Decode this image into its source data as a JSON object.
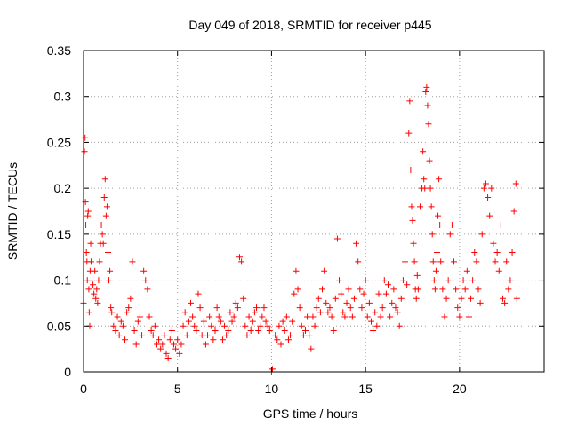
{
  "chart_data": {
    "type": "scatter",
    "title": "Day 049 of 2018, SRMTID for receiver p445",
    "xlabel": "GPS time / hours",
    "ylabel": "SRMTID / TECUs",
    "xlim": [
      0,
      24.5
    ],
    "ylim": [
      0,
      0.35
    ],
    "grid": true,
    "marker": "plus",
    "marker_color": "#ff0000",
    "x_ticks": [
      {
        "value": 0,
        "label": "0"
      },
      {
        "value": 5,
        "label": "5"
      },
      {
        "value": 10,
        "label": "10"
      },
      {
        "value": 15,
        "label": "15"
      },
      {
        "value": 20,
        "label": "20"
      }
    ],
    "y_ticks": [
      {
        "value": 0,
        "label": "0"
      },
      {
        "value": 0.05,
        "label": "0.05"
      },
      {
        "value": 0.1,
        "label": "0.1"
      },
      {
        "value": 0.15,
        "label": "0.15"
      },
      {
        "value": 0.2,
        "label": "0.2"
      },
      {
        "value": 0.25,
        "label": "0.25"
      },
      {
        "value": 0.3,
        "label": "0.3"
      },
      {
        "value": 0.35,
        "label": "0.35"
      }
    ],
    "series": [
      {
        "name": "SRMTID",
        "points": [
          [
            0.0,
            0.075
          ],
          [
            0.05,
            0.24
          ],
          [
            0.08,
            0.255
          ],
          [
            0.1,
            0.185
          ],
          [
            0.12,
            0.16
          ],
          [
            0.15,
            0.13
          ],
          [
            0.18,
            0.12
          ],
          [
            0.2,
            0.1
          ],
          [
            0.22,
            0.17
          ],
          [
            0.25,
            0.175
          ],
          [
            0.28,
            0.09
          ],
          [
            0.3,
            0.065
          ],
          [
            0.33,
            0.05
          ],
          [
            0.35,
            0.11
          ],
          [
            0.38,
            0.14
          ],
          [
            0.4,
            0.12
          ],
          [
            0.45,
            0.1
          ],
          [
            0.5,
            0.095
          ],
          [
            0.55,
            0.085
          ],
          [
            0.6,
            0.11
          ],
          [
            0.65,
            0.08
          ],
          [
            0.7,
            0.09
          ],
          [
            0.75,
            0.075
          ],
          [
            0.8,
            0.1
          ],
          [
            0.85,
            0.12
          ],
          [
            0.9,
            0.14
          ],
          [
            0.95,
            0.16
          ],
          [
            1.0,
            0.15
          ],
          [
            1.05,
            0.14
          ],
          [
            1.1,
            0.19
          ],
          [
            1.15,
            0.21
          ],
          [
            1.2,
            0.17
          ],
          [
            1.25,
            0.18
          ],
          [
            1.3,
            0.13
          ],
          [
            1.35,
            0.1
          ],
          [
            1.4,
            0.11
          ],
          [
            1.45,
            0.07
          ],
          [
            1.5,
            0.065
          ],
          [
            1.6,
            0.05
          ],
          [
            1.7,
            0.045
          ],
          [
            1.8,
            0.06
          ],
          [
            1.9,
            0.04
          ],
          [
            2.0,
            0.055
          ],
          [
            2.1,
            0.05
          ],
          [
            2.2,
            0.035
          ],
          [
            2.3,
            0.065
          ],
          [
            2.4,
            0.07
          ],
          [
            2.5,
            0.08
          ],
          [
            2.6,
            0.12
          ],
          [
            2.7,
            0.045
          ],
          [
            2.8,
            0.03
          ],
          [
            2.9,
            0.055
          ],
          [
            3.0,
            0.06
          ],
          [
            3.1,
            0.04
          ],
          [
            3.2,
            0.11
          ],
          [
            3.3,
            0.1
          ],
          [
            3.4,
            0.09
          ],
          [
            3.5,
            0.06
          ],
          [
            3.6,
            0.045
          ],
          [
            3.7,
            0.04
          ],
          [
            3.8,
            0.05
          ],
          [
            3.9,
            0.03
          ],
          [
            4.0,
            0.035
          ],
          [
            4.1,
            0.025
          ],
          [
            4.2,
            0.03
          ],
          [
            4.3,
            0.04
          ],
          [
            4.4,
            0.02
          ],
          [
            4.5,
            0.015
          ],
          [
            4.6,
            0.035
          ],
          [
            4.7,
            0.045
          ],
          [
            4.8,
            0.03
          ],
          [
            4.9,
            0.025
          ],
          [
            5.0,
            0.035
          ],
          [
            5.1,
            0.02
          ],
          [
            5.2,
            0.03
          ],
          [
            5.3,
            0.05
          ],
          [
            5.4,
            0.065
          ],
          [
            5.5,
            0.04
          ],
          [
            5.6,
            0.055
          ],
          [
            5.7,
            0.075
          ],
          [
            5.8,
            0.06
          ],
          [
            5.9,
            0.05
          ],
          [
            6.0,
            0.045
          ],
          [
            6.1,
            0.085
          ],
          [
            6.2,
            0.07
          ],
          [
            6.3,
            0.04
          ],
          [
            6.4,
            0.055
          ],
          [
            6.5,
            0.03
          ],
          [
            6.6,
            0.04
          ],
          [
            6.7,
            0.06
          ],
          [
            6.8,
            0.05
          ],
          [
            6.9,
            0.035
          ],
          [
            7.0,
            0.045
          ],
          [
            7.1,
            0.07
          ],
          [
            7.2,
            0.06
          ],
          [
            7.3,
            0.055
          ],
          [
            7.4,
            0.035
          ],
          [
            7.5,
            0.05
          ],
          [
            7.6,
            0.04
          ],
          [
            7.7,
            0.045
          ],
          [
            7.8,
            0.065
          ],
          [
            7.9,
            0.055
          ],
          [
            8.0,
            0.06
          ],
          [
            8.1,
            0.075
          ],
          [
            8.2,
            0.07
          ],
          [
            8.3,
            0.125
          ],
          [
            8.4,
            0.12
          ],
          [
            8.5,
            0.08
          ],
          [
            8.6,
            0.05
          ],
          [
            8.7,
            0.04
          ],
          [
            8.8,
            0.06
          ],
          [
            8.9,
            0.045
          ],
          [
            9.0,
            0.055
          ],
          [
            9.1,
            0.065
          ],
          [
            9.2,
            0.07
          ],
          [
            9.3,
            0.045
          ],
          [
            9.4,
            0.05
          ],
          [
            9.5,
            0.06
          ],
          [
            9.6,
            0.07
          ],
          [
            9.7,
            0.055
          ],
          [
            9.8,
            0.05
          ],
          [
            9.9,
            0.045
          ],
          [
            10.0,
            0.0
          ],
          [
            10.05,
            0.003
          ],
          [
            10.2,
            0.04
          ],
          [
            10.3,
            0.035
          ],
          [
            10.4,
            0.05
          ],
          [
            10.5,
            0.03
          ],
          [
            10.6,
            0.055
          ],
          [
            10.7,
            0.045
          ],
          [
            10.8,
            0.06
          ],
          [
            10.9,
            0.035
          ],
          [
            11.0,
            0.04
          ],
          [
            11.1,
            0.055
          ],
          [
            11.2,
            0.085
          ],
          [
            11.3,
            0.11
          ],
          [
            11.4,
            0.09
          ],
          [
            11.5,
            0.07
          ],
          [
            11.6,
            0.05
          ],
          [
            11.7,
            0.04
          ],
          [
            11.8,
            0.045
          ],
          [
            11.9,
            0.06
          ],
          [
            12.0,
            0.04
          ],
          [
            12.1,
            0.025
          ],
          [
            12.2,
            0.06
          ],
          [
            12.3,
            0.05
          ],
          [
            12.4,
            0.07
          ],
          [
            12.5,
            0.08
          ],
          [
            12.6,
            0.065
          ],
          [
            12.7,
            0.09
          ],
          [
            12.8,
            0.11
          ],
          [
            12.9,
            0.075
          ],
          [
            13.0,
            0.065
          ],
          [
            13.1,
            0.07
          ],
          [
            13.2,
            0.06
          ],
          [
            13.3,
            0.045
          ],
          [
            13.4,
            0.08
          ],
          [
            13.5,
            0.145
          ],
          [
            13.6,
            0.1
          ],
          [
            13.7,
            0.085
          ],
          [
            13.8,
            0.065
          ],
          [
            13.9,
            0.06
          ],
          [
            14.0,
            0.075
          ],
          [
            14.1,
            0.09
          ],
          [
            14.2,
            0.07
          ],
          [
            14.3,
            0.06
          ],
          [
            14.4,
            0.08
          ],
          [
            14.5,
            0.14
          ],
          [
            14.6,
            0.12
          ],
          [
            14.7,
            0.09
          ],
          [
            14.8,
            0.07
          ],
          [
            14.9,
            0.085
          ],
          [
            15.0,
            0.1
          ],
          [
            15.1,
            0.06
          ],
          [
            15.2,
            0.075
          ],
          [
            15.3,
            0.055
          ],
          [
            15.4,
            0.045
          ],
          [
            15.5,
            0.065
          ],
          [
            15.6,
            0.05
          ],
          [
            15.7,
            0.085
          ],
          [
            15.8,
            0.06
          ],
          [
            15.9,
            0.07
          ],
          [
            16.0,
            0.1
          ],
          [
            16.1,
            0.085
          ],
          [
            16.2,
            0.095
          ],
          [
            16.3,
            0.06
          ],
          [
            16.4,
            0.075
          ],
          [
            16.5,
            0.09
          ],
          [
            16.6,
            0.07
          ],
          [
            16.7,
            0.065
          ],
          [
            16.8,
            0.05
          ],
          [
            16.9,
            0.08
          ],
          [
            17.0,
            0.1
          ],
          [
            17.1,
            0.12
          ],
          [
            17.2,
            0.095
          ],
          [
            17.3,
            0.26
          ],
          [
            17.35,
            0.295
          ],
          [
            17.4,
            0.22
          ],
          [
            17.45,
            0.18
          ],
          [
            17.5,
            0.165
          ],
          [
            17.55,
            0.14
          ],
          [
            17.6,
            0.12
          ],
          [
            17.65,
            0.09
          ],
          [
            17.7,
            0.08
          ],
          [
            17.75,
            0.105
          ],
          [
            17.8,
            0.09
          ],
          [
            17.9,
            0.18
          ],
          [
            18.0,
            0.2
          ],
          [
            18.05,
            0.24
          ],
          [
            18.1,
            0.21
          ],
          [
            18.15,
            0.2
          ],
          [
            18.2,
            0.305
          ],
          [
            18.25,
            0.31
          ],
          [
            18.3,
            0.29
          ],
          [
            18.35,
            0.27
          ],
          [
            18.4,
            0.23
          ],
          [
            18.45,
            0.2
          ],
          [
            18.5,
            0.18
          ],
          [
            18.55,
            0.15
          ],
          [
            18.6,
            0.12
          ],
          [
            18.65,
            0.1
          ],
          [
            18.7,
            0.09
          ],
          [
            18.75,
            0.11
          ],
          [
            18.8,
            0.13
          ],
          [
            18.85,
            0.17
          ],
          [
            18.9,
            0.21
          ],
          [
            18.95,
            0.16
          ],
          [
            19.0,
            0.12
          ],
          [
            19.1,
            0.09
          ],
          [
            19.2,
            0.06
          ],
          [
            19.3,
            0.08
          ],
          [
            19.4,
            0.1
          ],
          [
            19.5,
            0.15
          ],
          [
            19.6,
            0.16
          ],
          [
            19.7,
            0.12
          ],
          [
            19.8,
            0.09
          ],
          [
            19.9,
            0.07
          ],
          [
            20.0,
            0.06
          ],
          [
            20.1,
            0.08
          ],
          [
            20.2,
            0.1
          ],
          [
            20.3,
            0.09
          ],
          [
            20.4,
            0.11
          ],
          [
            20.5,
            0.06
          ],
          [
            20.6,
            0.08
          ],
          [
            20.7,
            0.1
          ],
          [
            20.8,
            0.13
          ],
          [
            20.9,
            0.12
          ],
          [
            21.0,
            0.09
          ],
          [
            21.1,
            0.075
          ],
          [
            21.2,
            0.15
          ],
          [
            21.3,
            0.2
          ],
          [
            21.4,
            0.205
          ],
          [
            21.5,
            0.19
          ],
          [
            21.6,
            0.17
          ],
          [
            21.7,
            0.2
          ],
          [
            21.8,
            0.14
          ],
          [
            21.9,
            0.12
          ],
          [
            22.0,
            0.13
          ],
          [
            22.1,
            0.11
          ],
          [
            22.2,
            0.16
          ],
          [
            22.3,
            0.08
          ],
          [
            22.4,
            0.075
          ],
          [
            22.5,
            0.12
          ],
          [
            22.6,
            0.09
          ],
          [
            22.7,
            0.1
          ],
          [
            22.8,
            0.13
          ],
          [
            22.9,
            0.175
          ],
          [
            23.0,
            0.205
          ],
          [
            23.05,
            0.08
          ]
        ]
      }
    ]
  }
}
